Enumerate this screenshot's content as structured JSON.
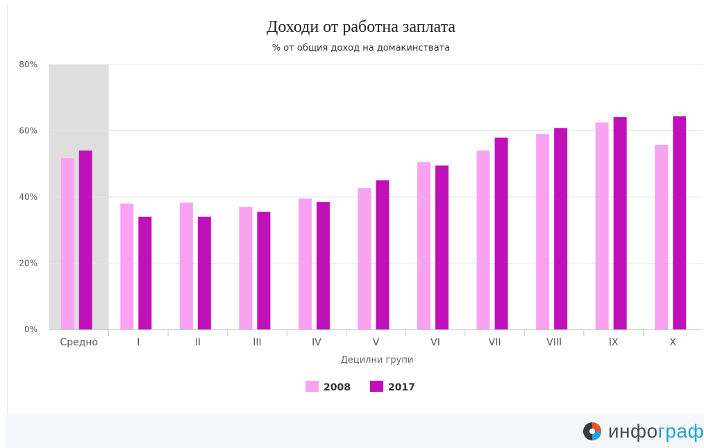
{
  "chart_data": {
    "type": "bar",
    "title": "Доходи от работна заплата",
    "subtitle": "% от общия доход на домакинствата",
    "xlabel": "Децилни групи",
    "ylabel": "",
    "ylim": [
      0,
      80
    ],
    "yticks": [
      "0%",
      "20%",
      "40%",
      "60%",
      "80%"
    ],
    "grid": true,
    "legend_position": "bottom-center",
    "highlighted_category": "Средно",
    "categories": [
      "Средно",
      "I",
      "II",
      "III",
      "IV",
      "V",
      "VI",
      "VII",
      "VIII",
      "IX",
      "X"
    ],
    "series": [
      {
        "name": "2008",
        "color": "#f9a2f1",
        "values": [
          51.7,
          38.0,
          38.3,
          37.0,
          39.5,
          42.7,
          50.5,
          54.0,
          59.0,
          62.5,
          55.7
        ]
      },
      {
        "name": "2017",
        "color": "#c010b9",
        "values": [
          54.0,
          34.0,
          34.0,
          35.5,
          38.5,
          45.0,
          49.5,
          57.9,
          60.8,
          64.1,
          64.4
        ]
      }
    ]
  },
  "branding": {
    "logo_text_part1": "инфо",
    "logo_text_part2": "граф",
    "logo_icon": "infograf-globe-icon"
  }
}
